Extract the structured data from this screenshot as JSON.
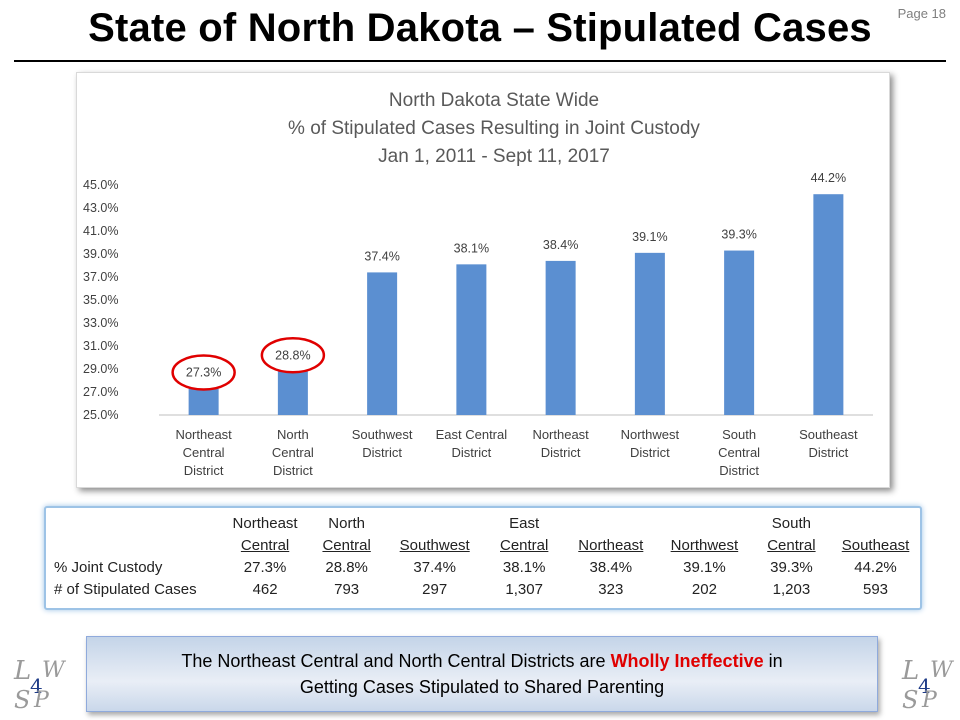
{
  "page": {
    "page_label": "Page 18",
    "title": "State of North Dakota – Stipulated Cases"
  },
  "chart_data": {
    "type": "bar",
    "title_lines": [
      "North Dakota State Wide",
      "% of Stipulated Cases Resulting in Joint Custody",
      "Jan 1, 2011 - Sept 11, 2017"
    ],
    "categories": [
      [
        "Northeast",
        "Central",
        "District"
      ],
      [
        "North",
        "Central",
        "District"
      ],
      [
        "Southwest",
        "District"
      ],
      [
        "East Central",
        "District"
      ],
      [
        "Northeast",
        "District"
      ],
      [
        "Northwest",
        "District"
      ],
      [
        "South",
        "Central",
        "District"
      ],
      [
        "Southeast",
        "District"
      ]
    ],
    "values": [
      27.3,
      28.8,
      37.4,
      38.1,
      38.4,
      39.1,
      39.3,
      44.2
    ],
    "data_labels": [
      "27.3%",
      "28.8%",
      "37.4%",
      "38.1%",
      "38.4%",
      "39.1%",
      "39.3%",
      "44.2%"
    ],
    "ylim": [
      25,
      45
    ],
    "yticks": [
      25,
      27,
      29,
      31,
      33,
      35,
      37,
      39,
      41,
      43,
      45
    ],
    "ytick_labels": [
      "25.0%",
      "27.0%",
      "29.0%",
      "31.0%",
      "33.0%",
      "35.0%",
      "37.0%",
      "39.0%",
      "41.0%",
      "43.0%",
      "45.0%"
    ],
    "highlighted": [
      0,
      1
    ],
    "bar_color": "#5b8fd1",
    "highlight_color": "#e00000",
    "grid": false,
    "xlabel": "",
    "ylabel": ""
  },
  "table": {
    "header_top": [
      "Northeast",
      "North",
      "",
      "East",
      "",
      "",
      "South",
      ""
    ],
    "header_bottom": [
      "Central",
      "Central",
      "Southwest",
      "Central",
      "Northeast",
      "Northwest",
      "Central",
      "Southeast"
    ],
    "rows": [
      {
        "label": "% Joint Custody",
        "values": [
          "27.3%",
          "28.8%",
          "37.4%",
          "38.1%",
          "38.4%",
          "39.1%",
          "39.3%",
          "44.2%"
        ]
      },
      {
        "label": "# of Stipulated Cases",
        "values": [
          "462",
          "793",
          "297",
          "1,307",
          "323",
          "202",
          "1,203",
          "593"
        ]
      }
    ]
  },
  "callout": {
    "line1_before": "The Northeast Central and North Central Districts are ",
    "line1_highlight": "Wholly Ineffective",
    "line1_after": " in",
    "line2": "Getting Cases Stipulated to Shared Parenting"
  },
  "logo": {
    "letters": [
      "L",
      "W",
      "4",
      "S",
      "P"
    ]
  }
}
